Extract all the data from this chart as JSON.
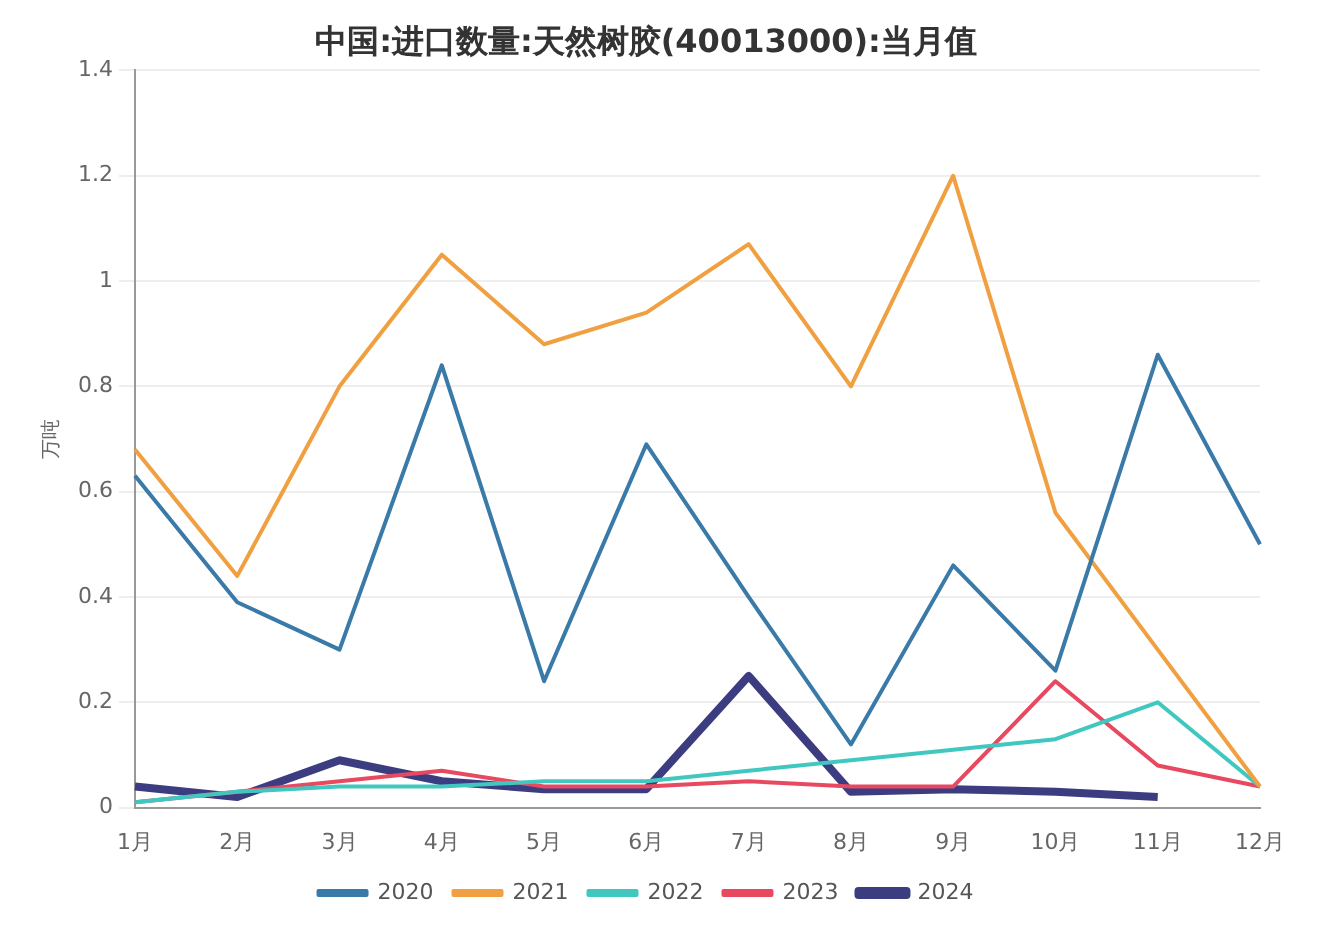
{
  "chart_data": {
    "type": "line",
    "title": "中国:进口数量:天然树胶(40013000):当月值",
    "ylabel": "万吨",
    "categories": [
      "1月",
      "2月",
      "3月",
      "4月",
      "5月",
      "6月",
      "7月",
      "8月",
      "9月",
      "10月",
      "11月",
      "12月"
    ],
    "series": [
      {
        "name": "2020",
        "color": "#3a7aa8",
        "values": [
          0.63,
          0.39,
          0.3,
          0.84,
          0.24,
          0.69,
          0.4,
          0.12,
          0.46,
          0.26,
          0.86,
          0.5
        ]
      },
      {
        "name": "2021",
        "color": "#f0a040",
        "values": [
          0.68,
          0.44,
          0.8,
          1.05,
          0.88,
          0.94,
          1.07,
          0.8,
          1.2,
          0.56,
          0.3,
          0.04
        ]
      },
      {
        "name": "2022",
        "color": "#40c8c0",
        "values": [
          0.01,
          0.03,
          0.04,
          0.04,
          0.05,
          0.05,
          0.07,
          0.09,
          0.11,
          0.13,
          0.2,
          0.04
        ]
      },
      {
        "name": "2023",
        "color": "#e84860",
        "values": [
          0.01,
          0.03,
          0.05,
          0.07,
          0.04,
          0.04,
          0.05,
          0.04,
          0.04,
          0.24,
          0.08,
          0.04
        ]
      },
      {
        "name": "2024",
        "color": "#3c3c80",
        "values": [
          0.04,
          0.02,
          0.09,
          0.05,
          0.035,
          0.035,
          0.25,
          0.03,
          0.035,
          0.03,
          0.02,
          null
        ]
      }
    ],
    "ylim": [
      0,
      1.4
    ],
    "yticks": [
      0,
      0.2,
      0.4,
      0.6,
      0.8,
      1,
      1.2,
      1.4
    ],
    "grid": "y",
    "legend": "bottom",
    "marker": "none",
    "line_style": "solid"
  }
}
